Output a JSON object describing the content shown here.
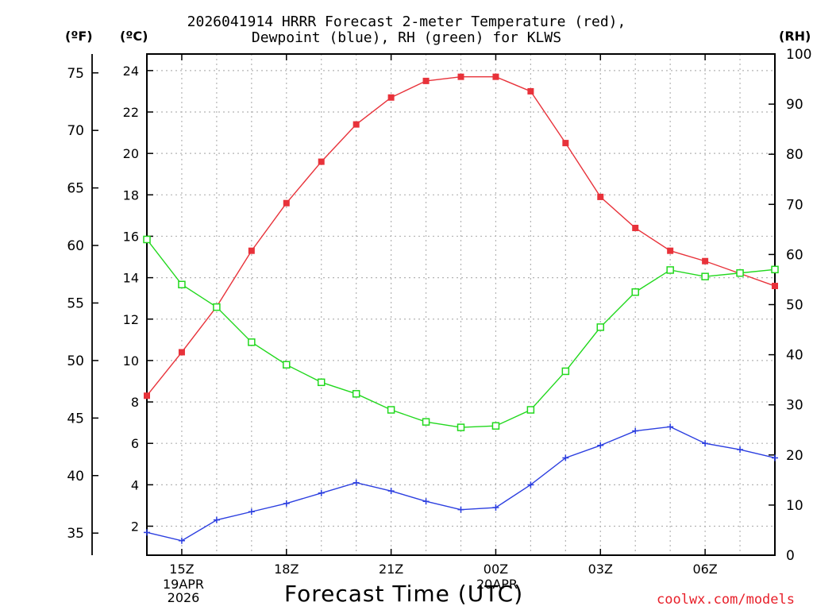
{
  "title": {
    "line1": "2026041914 HRRR Forecast 2-meter Temperature (red),",
    "line2": "Dewpoint (blue), RH (green) for KLWS"
  },
  "units": {
    "fahrenheit": "(ºF)",
    "celsius": "(ºC)",
    "rh": "(RH)"
  },
  "xaxis": {
    "label": "Forecast Time (UTC)",
    "date_start": [
      "19APR",
      "2026"
    ],
    "date_mid": "20APR"
  },
  "credit": "coolwx.com/models",
  "colors": {
    "temp": "#e8323a",
    "dewpoint": "#2c3fe0",
    "rh": "#22d81e",
    "grid": "#b4b4b4"
  },
  "chart_data": {
    "type": "line",
    "x": [
      14,
      15,
      16,
      17,
      18,
      19,
      20,
      21,
      22,
      23,
      24,
      25,
      26,
      27,
      28,
      29,
      30,
      31,
      32
    ],
    "xlim": [
      14,
      32
    ],
    "xticks": [
      {
        "x": 15,
        "label": "15Z"
      },
      {
        "x": 18,
        "label": "18Z"
      },
      {
        "x": 21,
        "label": "21Z"
      },
      {
        "x": 24,
        "label": "00Z"
      },
      {
        "x": 27,
        "label": "03Z"
      },
      {
        "x": 30,
        "label": "06Z"
      }
    ],
    "celsius_axis": {
      "ylim": [
        0.6,
        24.8
      ],
      "ticks": [
        2,
        4,
        6,
        8,
        10,
        12,
        14,
        16,
        18,
        20,
        22,
        24
      ]
    },
    "fahrenheit_axis": {
      "ticks": [
        35,
        40,
        45,
        50,
        55,
        60,
        65,
        70,
        75
      ]
    },
    "rh_axis": {
      "ylim": [
        0,
        100
      ],
      "ticks": [
        0,
        10,
        20,
        30,
        40,
        50,
        60,
        70,
        80,
        90,
        100
      ]
    },
    "series": [
      {
        "name": "Temperature",
        "axis": "celsius",
        "marker": "filled-square",
        "color": "#e8323a",
        "values": [
          8.3,
          10.4,
          12.6,
          15.3,
          17.6,
          19.6,
          21.4,
          22.7,
          23.5,
          23.7,
          23.7,
          23.0,
          20.5,
          17.9,
          16.4,
          15.3,
          14.8,
          14.2,
          13.6
        ]
      },
      {
        "name": "Dewpoint",
        "axis": "celsius",
        "marker": "plus",
        "color": "#2c3fe0",
        "values": [
          1.7,
          1.3,
          2.3,
          2.7,
          3.1,
          3.6,
          4.1,
          3.7,
          3.2,
          2.8,
          2.9,
          4.0,
          5.3,
          5.9,
          6.6,
          6.8,
          6.0,
          5.7,
          5.3
        ]
      },
      {
        "name": "Relative Humidity",
        "axis": "rh",
        "marker": "open-square",
        "color": "#22d81e",
        "values": [
          63.0,
          54.0,
          49.5,
          42.5,
          38.0,
          34.5,
          32.2,
          29.0,
          26.6,
          25.5,
          25.8,
          29.0,
          36.7,
          45.5,
          52.5,
          56.9,
          55.6,
          56.3,
          57.0
        ]
      }
    ]
  }
}
